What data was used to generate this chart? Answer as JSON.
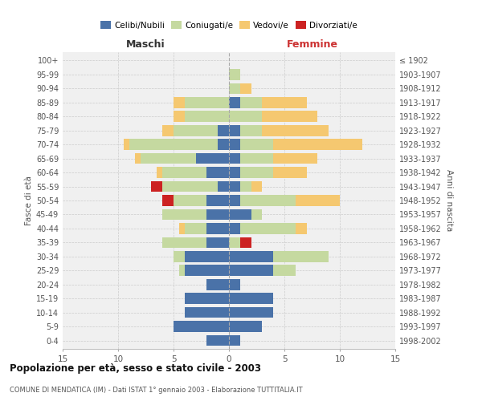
{
  "age_groups": [
    "0-4",
    "5-9",
    "10-14",
    "15-19",
    "20-24",
    "25-29",
    "30-34",
    "35-39",
    "40-44",
    "45-49",
    "50-54",
    "55-59",
    "60-64",
    "65-69",
    "70-74",
    "75-79",
    "80-84",
    "85-89",
    "90-94",
    "95-99",
    "100+"
  ],
  "birth_years": [
    "1998-2002",
    "1993-1997",
    "1988-1992",
    "1983-1987",
    "1978-1982",
    "1973-1977",
    "1968-1972",
    "1963-1967",
    "1958-1962",
    "1953-1957",
    "1948-1952",
    "1943-1947",
    "1938-1942",
    "1933-1937",
    "1928-1932",
    "1923-1927",
    "1918-1922",
    "1913-1917",
    "1908-1912",
    "1903-1907",
    "≤ 1902"
  ],
  "males": {
    "celibi": [
      2,
      5,
      4,
      4,
      2,
      4,
      4,
      2,
      2,
      2,
      2,
      1,
      2,
      3,
      1,
      1,
      0,
      0,
      0,
      0,
      0
    ],
    "coniugati": [
      0,
      0,
      0,
      0,
      0,
      0.5,
      1,
      4,
      2,
      4,
      3,
      5,
      4,
      5,
      8,
      4,
      4,
      4,
      0,
      0,
      0
    ],
    "vedovi": [
      0,
      0,
      0,
      0,
      0,
      0,
      0,
      0,
      0.5,
      0,
      0,
      0,
      0.5,
      0.5,
      0.5,
      1,
      1,
      1,
      0,
      0,
      0
    ],
    "divorziati": [
      0,
      0,
      0,
      0,
      0,
      0,
      0,
      0,
      0,
      0,
      1,
      1,
      0,
      0,
      0,
      0,
      0,
      0,
      0,
      0,
      0
    ]
  },
  "females": {
    "nubili": [
      1,
      3,
      4,
      4,
      1,
      4,
      4,
      0,
      1,
      2,
      1,
      1,
      1,
      1,
      1,
      1,
      0,
      1,
      0,
      0,
      0
    ],
    "coniugate": [
      0,
      0,
      0,
      0,
      0,
      2,
      5,
      1,
      5,
      1,
      5,
      1,
      3,
      3,
      3,
      2,
      3,
      2,
      1,
      1,
      0
    ],
    "vedove": [
      0,
      0,
      0,
      0,
      0,
      0,
      0,
      0,
      1,
      0,
      4,
      1,
      3,
      4,
      8,
      6,
      5,
      4,
      1,
      0,
      0
    ],
    "divorziate": [
      0,
      0,
      0,
      0,
      0,
      0,
      0,
      1,
      0,
      0,
      0,
      0,
      0,
      0,
      0,
      0,
      0,
      0,
      0,
      0,
      0
    ]
  },
  "colors": {
    "celibi": "#4a72a8",
    "coniugati": "#c5d9a0",
    "vedovi": "#f5c870",
    "divorziati": "#cc2222"
  },
  "xlim": 15,
  "title": "Popolazione per età, sesso e stato civile - 2003",
  "subtitle": "COMUNE DI MENDATICA (IM) - Dati ISTAT 1° gennaio 2003 - Elaborazione TUTTITALIA.IT",
  "ylabel": "Fasce di età",
  "ylabel_right": "Anni di nascita",
  "xlabel_left": "Maschi",
  "xlabel_right": "Femmine",
  "background_color": "#f0f0f0"
}
